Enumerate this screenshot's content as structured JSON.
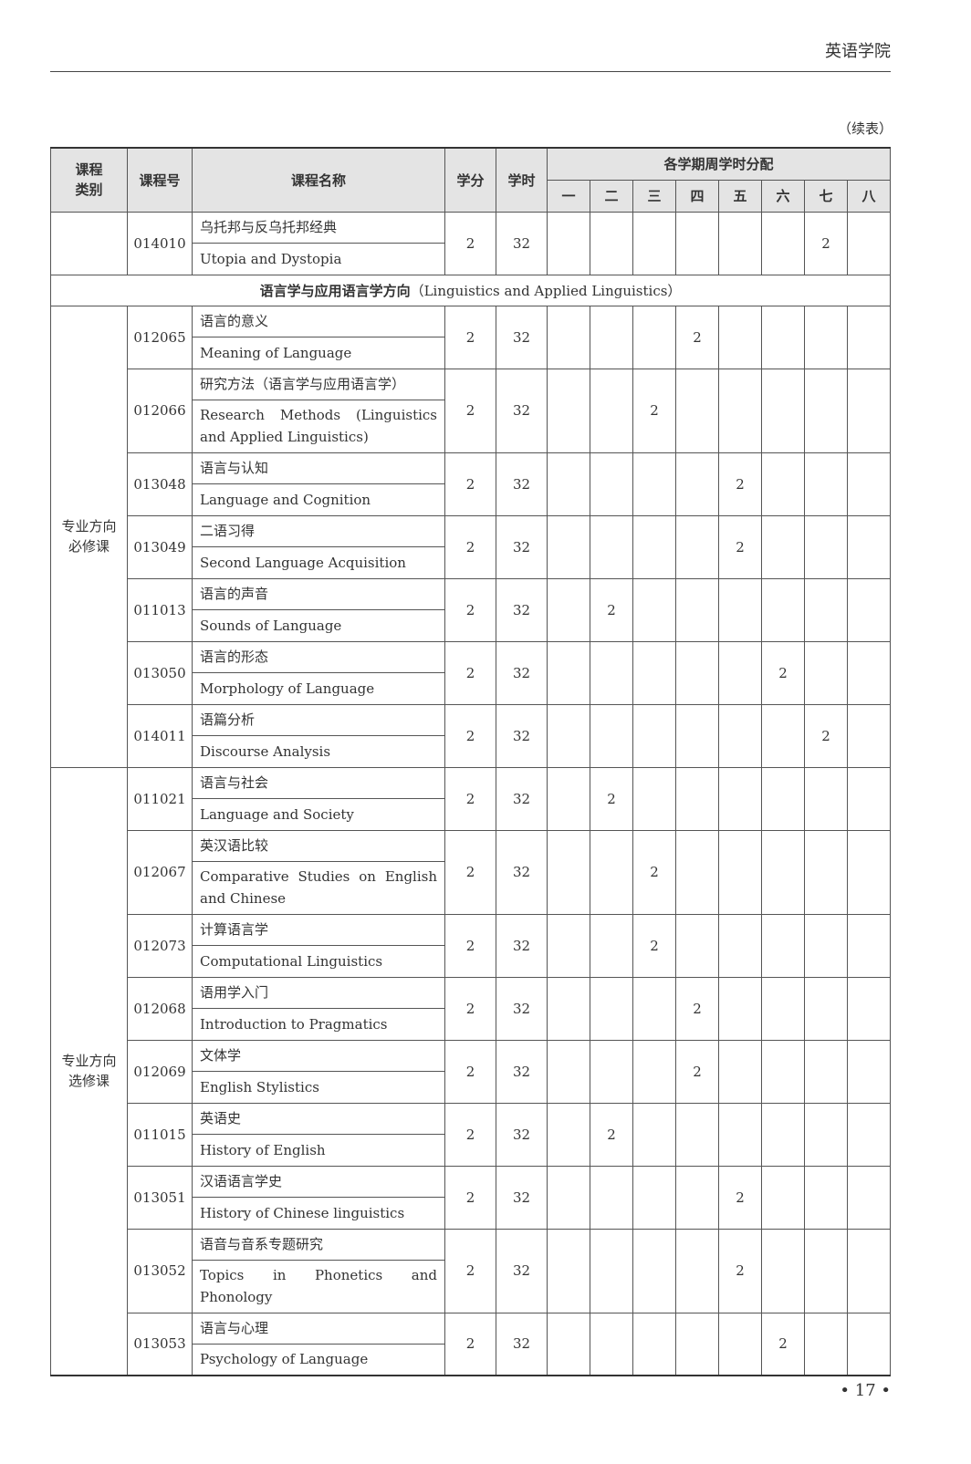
{
  "running_head": "英语学院",
  "continued": "（续表）",
  "page_number": "• 17 •",
  "headers": {
    "category": "课程\n类别",
    "code": "课程号",
    "name": "课程名称",
    "credits": "学分",
    "hours": "学时",
    "semesters_group": "各学期周学时分配",
    "semesters": [
      "一",
      "二",
      "三",
      "四",
      "五",
      "六",
      "七",
      "八"
    ]
  },
  "section": {
    "cn": "语言学与应用语言学方向",
    "en": "（Linguistics and Applied Linguistics）"
  },
  "groups": [
    {
      "category": "",
      "courses": [
        {
          "code": "014010",
          "cn": "乌托邦与反乌托邦经典",
          "en": "Utopia and Dystopia",
          "credits": "2",
          "hours": "32",
          "semester": 7,
          "hours_per_week": "2"
        }
      ]
    },
    {
      "category": "专业方向必修课",
      "courses": [
        {
          "code": "012065",
          "cn": "语言的意义",
          "en": "Meaning of Language",
          "credits": "2",
          "hours": "32",
          "semester": 4,
          "hours_per_week": "2"
        },
        {
          "code": "012066",
          "cn": "研究方法（语言学与应用语言学）",
          "en": "Research Methods (Linguistics and Applied Linguistics)",
          "credits": "2",
          "hours": "32",
          "semester": 3,
          "hours_per_week": "2"
        },
        {
          "code": "013048",
          "cn": "语言与认知",
          "en": "Language and Cognition",
          "credits": "2",
          "hours": "32",
          "semester": 5,
          "hours_per_week": "2"
        },
        {
          "code": "013049",
          "cn": "二语习得",
          "en": "Second Language Acquisition",
          "credits": "2",
          "hours": "32",
          "semester": 5,
          "hours_per_week": "2"
        },
        {
          "code": "011013",
          "cn": "语言的声音",
          "en": "Sounds of Language",
          "credits": "2",
          "hours": "32",
          "semester": 2,
          "hours_per_week": "2"
        },
        {
          "code": "013050",
          "cn": "语言的形态",
          "en": "Morphology of Language",
          "credits": "2",
          "hours": "32",
          "semester": 6,
          "hours_per_week": "2"
        },
        {
          "code": "014011",
          "cn": "语篇分析",
          "en": "Discourse Analysis",
          "credits": "2",
          "hours": "32",
          "semester": 7,
          "hours_per_week": "2"
        }
      ]
    },
    {
      "category": "专业方向选修课",
      "courses": [
        {
          "code": "011021",
          "cn": "语言与社会",
          "en": "Language and Society",
          "credits": "2",
          "hours": "32",
          "semester": 2,
          "hours_per_week": "2"
        },
        {
          "code": "012067",
          "cn": "英汉语比较",
          "en": "Comparative Studies on English and Chinese",
          "credits": "2",
          "hours": "32",
          "semester": 3,
          "hours_per_week": "2"
        },
        {
          "code": "012073",
          "cn": "计算语言学",
          "en": "Computational Linguistics",
          "credits": "2",
          "hours": "32",
          "semester": 3,
          "hours_per_week": "2"
        },
        {
          "code": "012068",
          "cn": "语用学入门",
          "en": "Introduction to Pragmatics",
          "credits": "2",
          "hours": "32",
          "semester": 4,
          "hours_per_week": "2"
        },
        {
          "code": "012069",
          "cn": "文体学",
          "en": "English Stylistics",
          "credits": "2",
          "hours": "32",
          "semester": 4,
          "hours_per_week": "2"
        },
        {
          "code": "011015",
          "cn": "英语史",
          "en": "History of English",
          "credits": "2",
          "hours": "32",
          "semester": 2,
          "hours_per_week": "2"
        },
        {
          "code": "013051",
          "cn": "汉语语言学史",
          "en": "History of Chinese linguistics",
          "credits": "2",
          "hours": "32",
          "semester": 5,
          "hours_per_week": "2"
        },
        {
          "code": "013052",
          "cn": "语音与音系专题研究",
          "en": "Topics in Phonetics and Phonology",
          "credits": "2",
          "hours": "32",
          "semester": 5,
          "hours_per_week": "2"
        },
        {
          "code": "013053",
          "cn": "语言与心理",
          "en": "Psychology of Language",
          "credits": "2",
          "hours": "32",
          "semester": 6,
          "hours_per_week": "2"
        }
      ]
    }
  ]
}
